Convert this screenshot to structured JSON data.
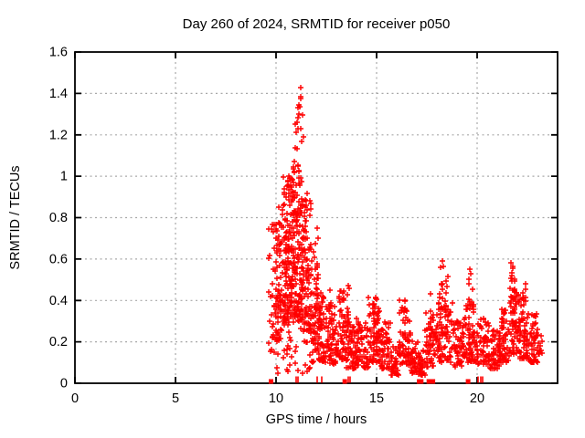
{
  "title": "Day 260 of 2024, SRMTID for receiver p050",
  "x_axis": {
    "label": "GPS time / hours",
    "ticks": [
      "0",
      "5",
      "10",
      "15",
      "20"
    ],
    "tick_values": [
      0,
      5,
      10,
      15,
      20
    ]
  },
  "y_axis": {
    "label": "SRMTID / TECUs",
    "ticks": [
      "0",
      "0.2",
      "0.4",
      "0.6",
      "0.8",
      "1",
      "1.2",
      "1.4",
      "1.6"
    ],
    "tick_values": [
      0,
      0.2,
      0.4,
      0.6,
      0.8,
      1,
      1.2,
      1.4,
      1.6
    ]
  },
  "colors": {
    "series": "#ff0000",
    "grid": "#a8a8a8",
    "axis": "#000000",
    "background": "#ffffff",
    "text": "#000000"
  },
  "chart_data": {
    "type": "scatter",
    "marker": "plus",
    "title": "Day 260 of 2024, SRMTID for receiver p050",
    "xlabel": "GPS time / hours",
    "ylabel": "SRMTID / TECUs",
    "xlim": [
      0,
      24
    ],
    "ylim": [
      0,
      1.6
    ],
    "grid": true,
    "legend": "none",
    "x_grid": [
      5,
      10,
      15,
      20
    ],
    "y_grid": [
      0.2,
      0.4,
      0.6,
      0.8,
      1,
      1.2,
      1.4
    ],
    "seed": 2024260,
    "peak_points": [
      [
        11.22,
        1.43
      ],
      [
        11.24,
        1.385
      ],
      [
        11.15,
        1.345
      ],
      [
        11.1,
        1.33
      ],
      [
        11.3,
        1.295
      ],
      [
        11.05,
        1.26
      ],
      [
        10.95,
        1.25
      ],
      [
        11.0,
        1.21
      ],
      [
        11.35,
        1.19
      ],
      [
        10.9,
        1.02
      ],
      [
        10.65,
        1.0
      ],
      [
        11.12,
        0.99
      ],
      [
        12.05,
        0.75
      ],
      [
        12.1,
        0.7
      ],
      [
        18.25,
        0.59
      ],
      [
        18.3,
        0.565
      ],
      [
        21.7,
        0.58
      ],
      [
        21.75,
        0.565
      ],
      [
        19.62,
        0.55
      ],
      [
        22.4,
        0.48
      ]
    ],
    "bands": [
      [
        9.62,
        9.95,
        0.15,
        0.78,
        28
      ],
      [
        9.95,
        10.3,
        0.2,
        0.85,
        55
      ],
      [
        10.3,
        10.7,
        0.28,
        1.0,
        85
      ],
      [
        10.7,
        11.05,
        0.32,
        1.05,
        85
      ],
      [
        11.05,
        11.35,
        0.3,
        1.0,
        75
      ],
      [
        11.35,
        11.75,
        0.25,
        0.88,
        70
      ],
      [
        10.0,
        11.9,
        0.05,
        0.3,
        45
      ],
      [
        11.75,
        12.1,
        0.16,
        0.6,
        50
      ],
      [
        12.1,
        12.6,
        0.1,
        0.42,
        60
      ],
      [
        12.6,
        13.1,
        0.09,
        0.38,
        55
      ],
      [
        13.1,
        13.5,
        0.11,
        0.45,
        50
      ],
      [
        13.5,
        14.0,
        0.07,
        0.32,
        55
      ],
      [
        14.0,
        14.6,
        0.07,
        0.3,
        60
      ],
      [
        14.6,
        15.2,
        0.1,
        0.42,
        65
      ],
      [
        15.2,
        15.7,
        0.07,
        0.3,
        50
      ],
      [
        15.7,
        16.1,
        0.04,
        0.18,
        42
      ],
      [
        16.1,
        16.7,
        0.09,
        0.4,
        60
      ],
      [
        16.7,
        17.1,
        0.05,
        0.22,
        42
      ],
      [
        17.1,
        17.4,
        0.04,
        0.16,
        32
      ],
      [
        17.4,
        18.0,
        0.08,
        0.35,
        55
      ],
      [
        18.0,
        18.8,
        0.1,
        0.45,
        70
      ],
      [
        18.8,
        19.4,
        0.08,
        0.32,
        60
      ],
      [
        19.4,
        20.0,
        0.1,
        0.4,
        60
      ],
      [
        20.0,
        20.6,
        0.09,
        0.32,
        58
      ],
      [
        20.6,
        21.1,
        0.07,
        0.26,
        48
      ],
      [
        21.1,
        21.6,
        0.1,
        0.36,
        55
      ],
      [
        21.6,
        22.1,
        0.14,
        0.46,
        62
      ],
      [
        22.1,
        22.6,
        0.12,
        0.42,
        55
      ],
      [
        22.6,
        23.05,
        0.1,
        0.34,
        48
      ],
      [
        23.05,
        23.25,
        0.14,
        0.3,
        10
      ]
    ],
    "streaks": [
      [
        10.05,
        0.3,
        0.68,
        10
      ],
      [
        10.45,
        0.4,
        0.95,
        12
      ],
      [
        10.6,
        0.5,
        1.0,
        12
      ],
      [
        10.78,
        0.5,
        0.98,
        10
      ],
      [
        10.9,
        0.55,
        1.2,
        10
      ],
      [
        11.08,
        0.6,
        1.3,
        10
      ],
      [
        11.18,
        0.65,
        1.38,
        8
      ],
      [
        11.28,
        0.55,
        1.25,
        8
      ],
      [
        11.5,
        0.4,
        0.92,
        10
      ],
      [
        11.9,
        0.28,
        0.72,
        8
      ],
      [
        12.2,
        0.18,
        0.5,
        8
      ],
      [
        12.7,
        0.18,
        0.46,
        8
      ],
      [
        13.6,
        0.18,
        0.48,
        10
      ],
      [
        14.9,
        0.18,
        0.44,
        10
      ],
      [
        15.05,
        0.18,
        0.4,
        8
      ],
      [
        16.35,
        0.18,
        0.42,
        8
      ],
      [
        17.7,
        0.15,
        0.48,
        8
      ],
      [
        18.2,
        0.22,
        0.57,
        12
      ],
      [
        18.5,
        0.18,
        0.52,
        10
      ],
      [
        19.6,
        0.22,
        0.53,
        10
      ],
      [
        19.8,
        0.18,
        0.48,
        8
      ],
      [
        21.7,
        0.25,
        0.56,
        12
      ],
      [
        21.9,
        0.2,
        0.52,
        10
      ],
      [
        22.35,
        0.18,
        0.46,
        10
      ]
    ],
    "event_squares": [
      9.75,
      13.42,
      17.12,
      17.22,
      17.6,
      17.8,
      19.55
    ],
    "event_ticks": [
      11.0,
      11.09,
      12.05,
      12.27,
      13.58,
      13.69,
      20.05,
      20.17,
      20.28
    ]
  }
}
